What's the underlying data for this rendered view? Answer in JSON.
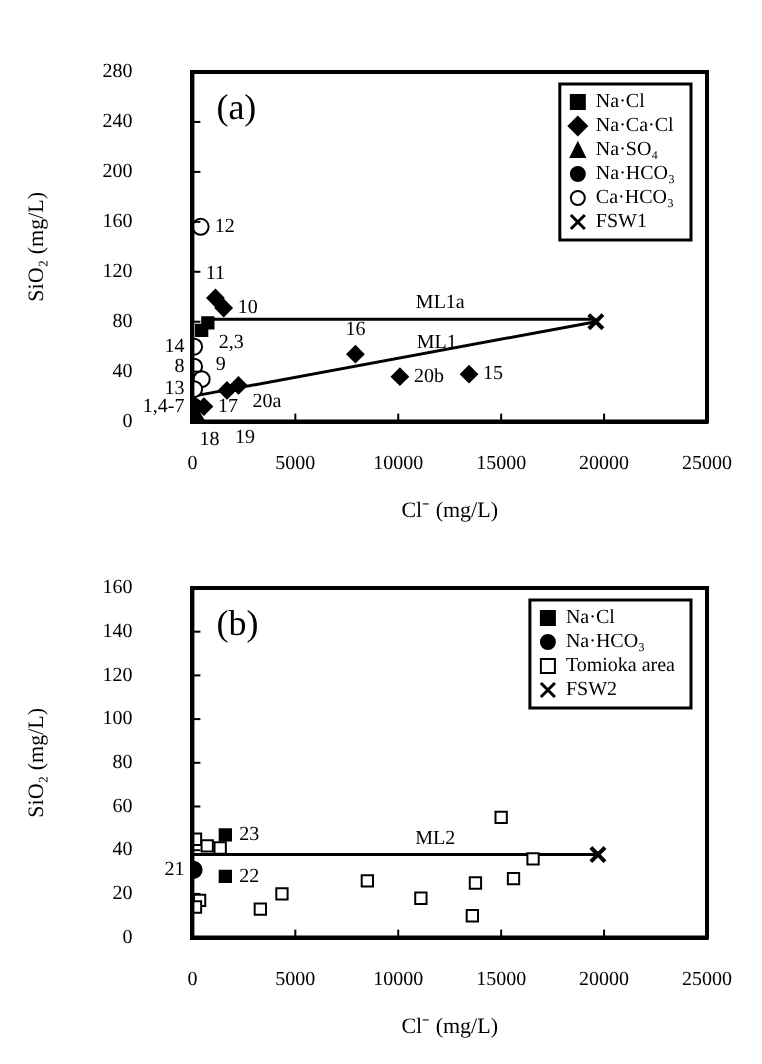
{
  "chart_data": [
    {
      "type": "scatter",
      "title": "(a)",
      "xlabel": "Cl⁻ (mg/L)",
      "ylabel": "SiO₂ (mg/L)",
      "xlim": [
        0,
        25000
      ],
      "xticks": [
        0,
        5000,
        10000,
        15000,
        20000,
        25000
      ],
      "ylim": [
        0,
        280
      ],
      "yticks": [
        0,
        40,
        80,
        120,
        160,
        200,
        240,
        280
      ],
      "grid": false,
      "legend": "top right",
      "series": [
        {
          "name": "Na·Cl",
          "marker": "square",
          "color": "#000000",
          "x": [
            450,
            750
          ],
          "values": [
            73,
            79
          ]
        },
        {
          "name": "Na·Ca·Cl",
          "marker": "diamond",
          "color": "#000000",
          "x": [
            1120,
            1520,
            7920,
            10080,
            13440,
            2240,
            1680,
            560
          ],
          "values": [
            99,
            91,
            54,
            36,
            38,
            29,
            25,
            12
          ]
        },
        {
          "name": "Na·SO₄",
          "marker": "triangle",
          "color": "#000000",
          "x": [
            250
          ],
          "values": [
            3
          ]
        },
        {
          "name": "Na·HCO₃",
          "marker": "circle",
          "color": "#000000",
          "x": [
            60
          ],
          "values": [
            12
          ]
        },
        {
          "name": "Ca·HCO₃",
          "marker": "circle",
          "color": "#ffffff",
          "x": [
            400,
            80,
            80,
            450,
            80
          ],
          "values": [
            156,
            60,
            44,
            34,
            26
          ]
        },
        {
          "name": "FSW1",
          "marker": "cross",
          "color": "#000000",
          "x": [
            19600
          ],
          "values": [
            80
          ]
        },
        {
          "name": "ML1a",
          "type": "line",
          "marker": "none",
          "color": "#000000",
          "x": [
            600,
            19600
          ],
          "values": [
            82,
            82
          ]
        },
        {
          "name": "ML1",
          "type": "line",
          "marker": "none",
          "color": "#000000",
          "x": [
            250,
            19600
          ],
          "values": [
            21,
            80
          ]
        }
      ],
      "annotations": [
        {
          "text": "12",
          "x": 400,
          "y": 156
        },
        {
          "text": "11",
          "x": 1120,
          "y": 99
        },
        {
          "text": "10",
          "x": 1520,
          "y": 91
        },
        {
          "text": "2,3",
          "x": 600,
          "y": 76
        },
        {
          "text": "16",
          "x": 7920,
          "y": 54
        },
        {
          "text": "20b",
          "x": 10080,
          "y": 36
        },
        {
          "text": "15",
          "x": 13440,
          "y": 38
        },
        {
          "text": "20a",
          "x": 2240,
          "y": 29
        },
        {
          "text": "18",
          "x": 250,
          "y": 3
        },
        {
          "text": "19",
          "x": 1680,
          "y": 25
        },
        {
          "text": "17",
          "x": 560,
          "y": 12
        },
        {
          "text": "1,4-7",
          "x": 60,
          "y": 12
        },
        {
          "text": "14",
          "x": 80,
          "y": 60
        },
        {
          "text": "8",
          "x": 80,
          "y": 44
        },
        {
          "text": "9",
          "x": 450,
          "y": 34
        },
        {
          "text": "13",
          "x": 80,
          "y": 26
        }
      ]
    },
    {
      "type": "scatter",
      "title": "(b)",
      "xlabel": "Cl⁻ (mg/L)",
      "ylabel": "SiO₂ (mg/L)",
      "xlim": [
        0,
        25000
      ],
      "xticks": [
        0,
        5000,
        10000,
        15000,
        20000,
        25000
      ],
      "ylim": [
        0,
        160
      ],
      "yticks": [
        0,
        20,
        40,
        60,
        80,
        100,
        120,
        140,
        160
      ],
      "grid": false,
      "legend": "top right",
      "series": [
        {
          "name": "Na·Cl",
          "marker": "square",
          "color": "#000000",
          "x": [
            1600,
            1600
          ],
          "values": [
            47,
            28
          ]
        },
        {
          "name": "Na·HCO₃",
          "marker": "circle",
          "color": "#000000",
          "x": [
            60
          ],
          "values": [
            31
          ]
        },
        {
          "name": "Tomioka area",
          "marker": "square",
          "color": "#ffffff",
          "x": [
            150,
            720,
            1350,
            350,
            150,
            3300,
            4350,
            8500,
            11100,
            13750,
            13600,
            15000,
            15600,
            16550
          ],
          "values": [
            45,
            42,
            41,
            17,
            14,
            13,
            20,
            26,
            18,
            25,
            10,
            55,
            27,
            36
          ]
        },
        {
          "name": "FSW2",
          "marker": "cross",
          "color": "#000000",
          "x": [
            19700
          ],
          "values": [
            38
          ]
        },
        {
          "name": "ML2",
          "type": "line",
          "marker": "none",
          "color": "#000000",
          "x": [
            0,
            19700
          ],
          "values": [
            38,
            38
          ]
        }
      ],
      "annotations": [
        {
          "text": "23",
          "x": 1600,
          "y": 47
        },
        {
          "text": "22",
          "x": 1600,
          "y": 28
        },
        {
          "text": "21",
          "x": 60,
          "y": 31
        }
      ]
    }
  ]
}
